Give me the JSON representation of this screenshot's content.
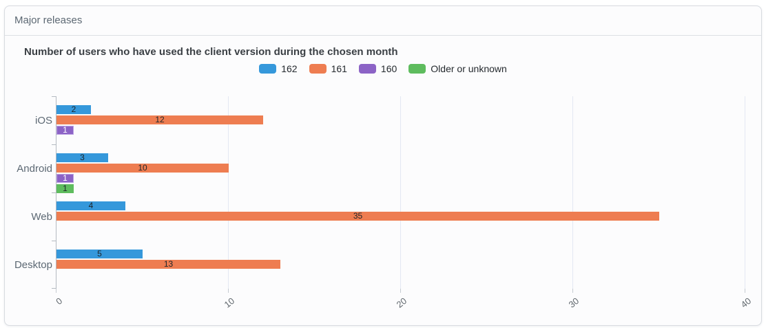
{
  "card": {
    "title": "Major releases"
  },
  "chart_data": {
    "type": "bar",
    "orientation": "horizontal",
    "title": "Number of users who have used the client version during the chosen month",
    "categories": [
      "iOS",
      "Android",
      "Web",
      "Desktop"
    ],
    "series": [
      {
        "name": "162",
        "color": "#3598db",
        "label_color": "#1d2429",
        "values": [
          2,
          3,
          4,
          5
        ]
      },
      {
        "name": "161",
        "color": "#ee7d51",
        "label_color": "#1d2429",
        "values": [
          12,
          10,
          35,
          13
        ]
      },
      {
        "name": "160",
        "color": "#8c63c6",
        "border_color": "#bba2e2",
        "label_color": "#ffffff",
        "values": [
          1,
          1,
          0,
          0
        ]
      },
      {
        "name": "Older or unknown",
        "color": "#5ebc5e",
        "label_color": "#1d2429",
        "values": [
          0,
          1,
          0,
          0
        ]
      }
    ],
    "xlim": [
      0,
      40
    ],
    "xticks": [
      0,
      10,
      20,
      30,
      40
    ],
    "legend_position": "top-center",
    "grid": true
  },
  "theme": {
    "card_border": "#d8dbe0",
    "header_text": "#5c6873",
    "axis_line": "#b4bac1",
    "gridline": "#e3e8f2",
    "category_label": "#5c6873",
    "tick_label": "#61686e"
  }
}
